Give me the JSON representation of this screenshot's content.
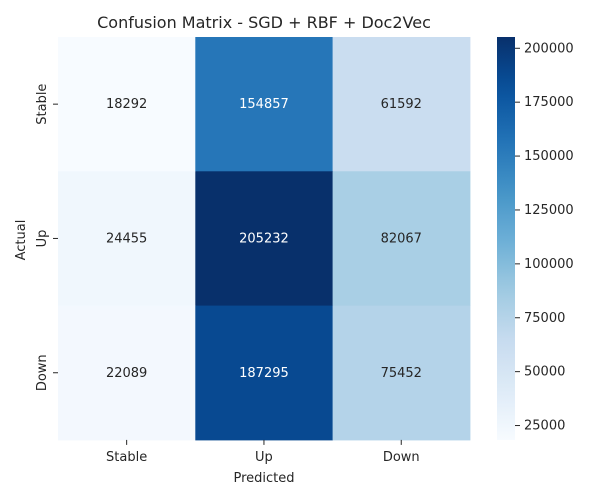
{
  "chart_data": {
    "type": "heatmap",
    "title": "Confusion Matrix - SGD + RBF + Doc2Vec",
    "xlabel": "Predicted",
    "ylabel": "Actual",
    "x_categories": [
      "Stable",
      "Up",
      "Down"
    ],
    "y_categories": [
      "Stable",
      "Up",
      "Down"
    ],
    "values": [
      [
        18292,
        154857,
        61592
      ],
      [
        24455,
        205232,
        82067
      ],
      [
        22089,
        187295,
        75452
      ]
    ],
    "colorbar": {
      "colormap": "Blues",
      "range": [
        18292,
        205232
      ],
      "ticks": [
        25000,
        50000,
        75000,
        100000,
        125000,
        150000,
        175000,
        200000
      ],
      "tick_labels": [
        "25000",
        "50000",
        "75000",
        "100000",
        "125000",
        "150000",
        "175000",
        "200000"
      ]
    },
    "colors": {
      "text_dark": "#262626",
      "text_light": "#ffffff",
      "axis": "#262626"
    }
  }
}
